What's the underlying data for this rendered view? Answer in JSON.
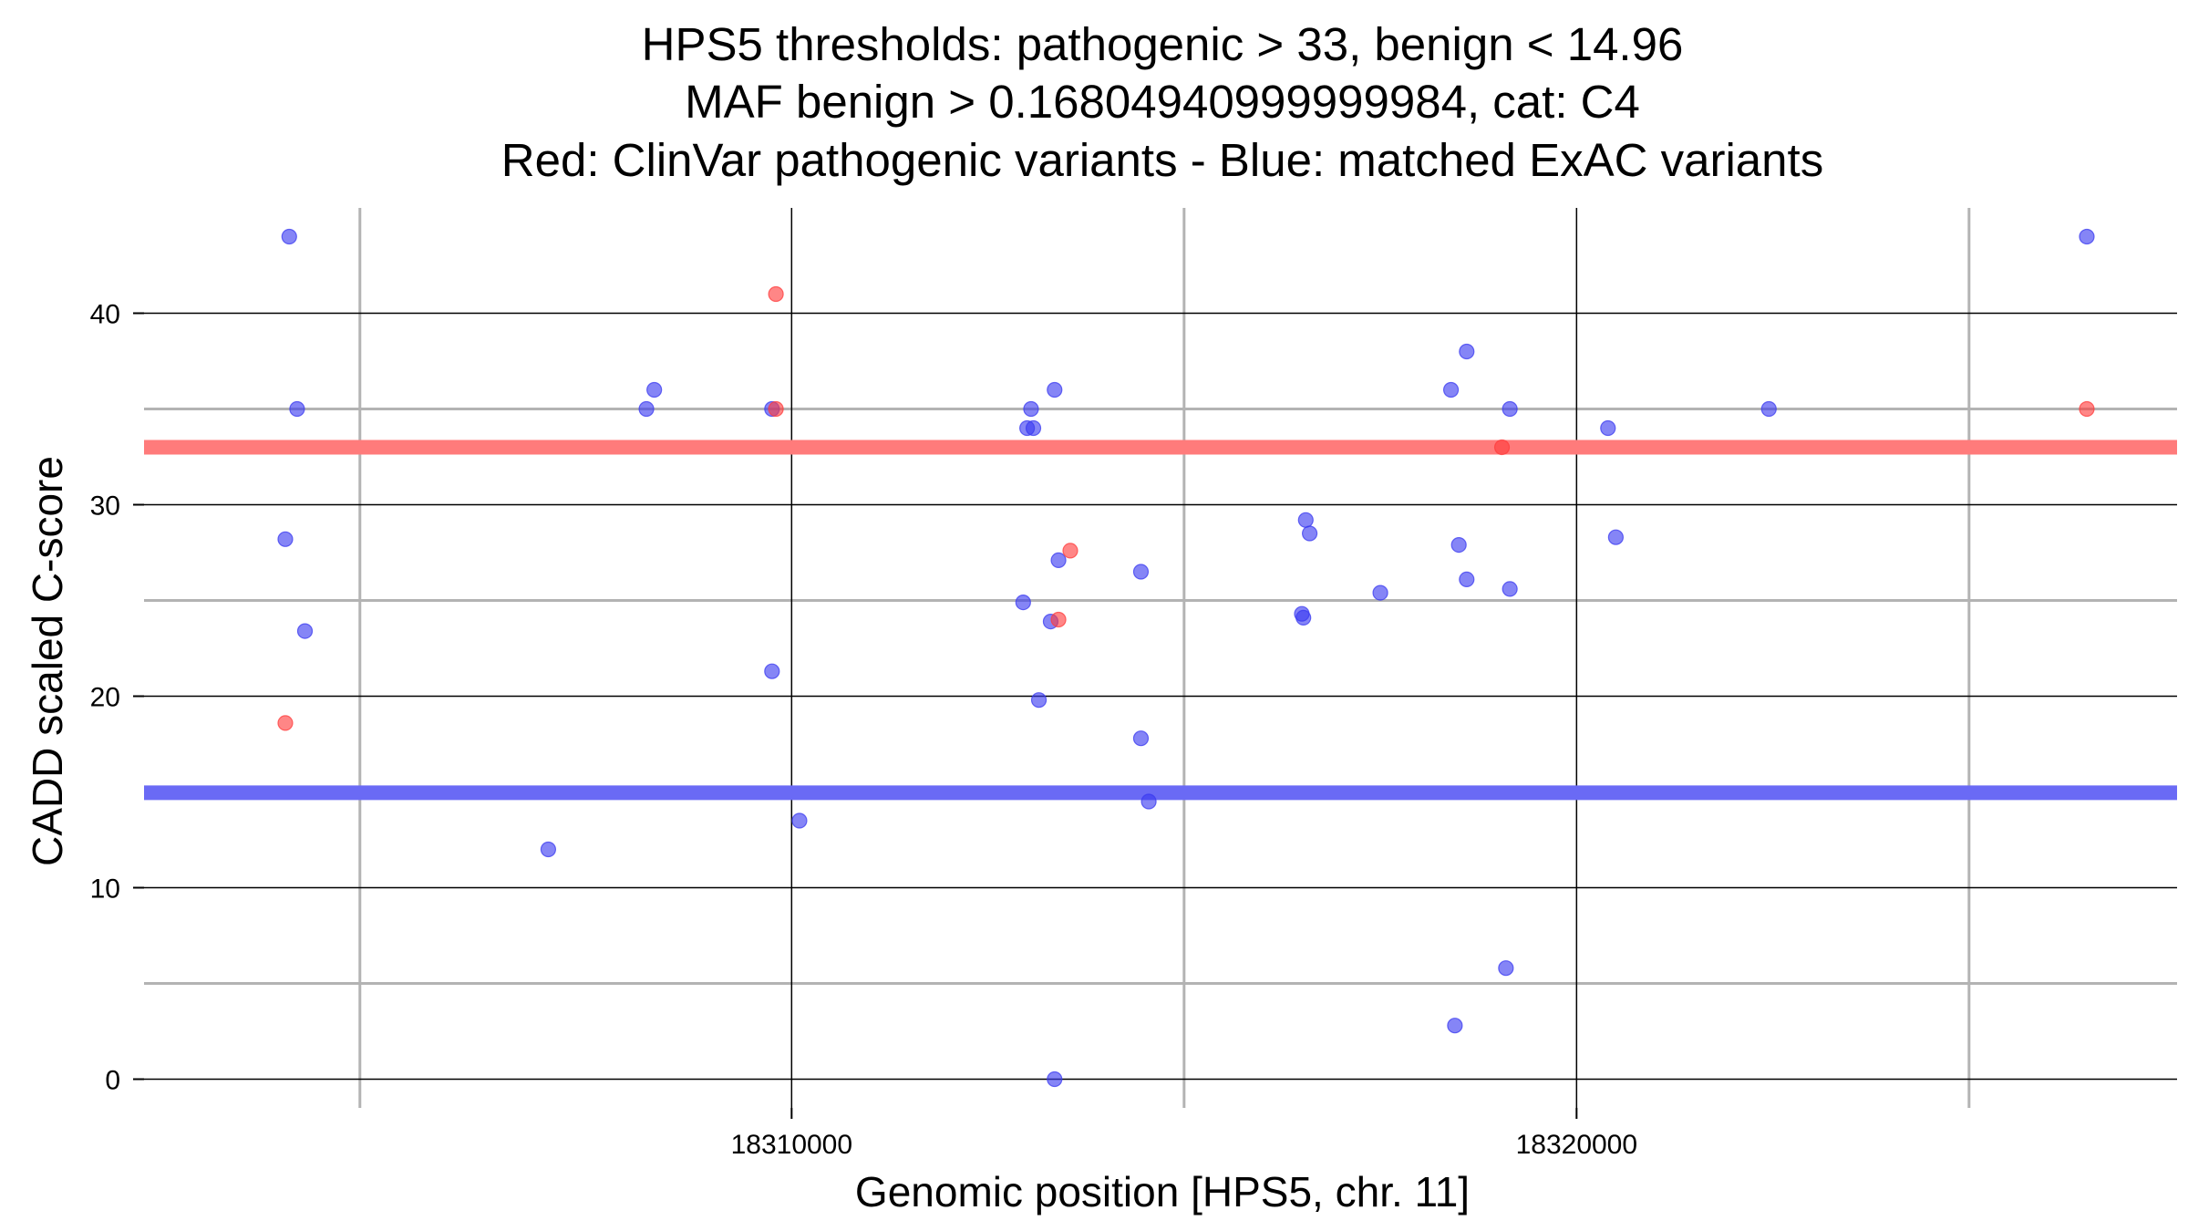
{
  "chart_data": {
    "type": "scatter",
    "title_lines": [
      "HPS5 thresholds: pathogenic > 33, benign < 14.96",
      "MAF benign > 0.16804940999999984, cat: C4",
      "Red: ClinVar pathogenic variants - Blue: matched ExAC variants"
    ],
    "xlabel": "Genomic position [HPS5, chr. 11]",
    "ylabel": "CADD scaled C-score",
    "xlim": [
      18301750,
      18327650
    ],
    "ylim": [
      -1.5,
      45.5
    ],
    "x_major_ticks": [
      18310000,
      18320000
    ],
    "x_minor_ticks": [
      18304500,
      18315000,
      18325000
    ],
    "y_major_ticks": [
      0,
      10,
      20,
      30,
      40
    ],
    "y_minor_ticks": [
      5,
      15,
      25,
      35
    ],
    "x_tick_labels": [
      "18310000",
      "18320000"
    ],
    "y_tick_labels": [
      "0",
      "10",
      "20",
      "30",
      "40"
    ],
    "grid": true,
    "thresholds": {
      "pathogenic": 33,
      "benign": 14.96
    },
    "colors": {
      "pathogenic": "#ff3b3b",
      "benign": "#3a3af0",
      "threshold_pathogenic": "#ff7b7b",
      "threshold_benign": "#6a6af5",
      "grid_major": "#000000",
      "grid_minor": "#b3b3b3"
    },
    "series": [
      {
        "name": "ClinVar pathogenic variants",
        "color": "#ff3b3b",
        "points": [
          {
            "x": 18303550,
            "y": 18.6
          },
          {
            "x": 18309800,
            "y": 41.0
          },
          {
            "x": 18309800,
            "y": 35.0
          },
          {
            "x": 18313550,
            "y": 27.6
          },
          {
            "x": 18313400,
            "y": 24.0
          },
          {
            "x": 18319050,
            "y": 33.0
          },
          {
            "x": 18326500,
            "y": 35.0
          }
        ]
      },
      {
        "name": "matched ExAC variants",
        "color": "#3a3af0",
        "points": [
          {
            "x": 18303600,
            "y": 44.0
          },
          {
            "x": 18303700,
            "y": 35.0
          },
          {
            "x": 18303550,
            "y": 28.2
          },
          {
            "x": 18303800,
            "y": 23.4
          },
          {
            "x": 18306900,
            "y": 12.0
          },
          {
            "x": 18308150,
            "y": 35.0
          },
          {
            "x": 18308250,
            "y": 36.0
          },
          {
            "x": 18309750,
            "y": 35.0
          },
          {
            "x": 18309750,
            "y": 21.3
          },
          {
            "x": 18310100,
            "y": 13.5
          },
          {
            "x": 18313000,
            "y": 34.0
          },
          {
            "x": 18313080,
            "y": 34.0
          },
          {
            "x": 18313050,
            "y": 35.0
          },
          {
            "x": 18313350,
            "y": 36.0
          },
          {
            "x": 18313400,
            "y": 27.1
          },
          {
            "x": 18312950,
            "y": 24.9
          },
          {
            "x": 18313300,
            "y": 23.9
          },
          {
            "x": 18313150,
            "y": 19.8
          },
          {
            "x": 18313350,
            "y": 0.0
          },
          {
            "x": 18314450,
            "y": 26.5
          },
          {
            "x": 18314450,
            "y": 17.8
          },
          {
            "x": 18314550,
            "y": 14.5
          },
          {
            "x": 18316550,
            "y": 29.2
          },
          {
            "x": 18316600,
            "y": 28.5
          },
          {
            "x": 18316500,
            "y": 24.3
          },
          {
            "x": 18316520,
            "y": 24.1
          },
          {
            "x": 18317500,
            "y": 25.4
          },
          {
            "x": 18318400,
            "y": 36.0
          },
          {
            "x": 18318600,
            "y": 38.0
          },
          {
            "x": 18318500,
            "y": 27.9
          },
          {
            "x": 18318600,
            "y": 26.1
          },
          {
            "x": 18318450,
            "y": 2.8
          },
          {
            "x": 18319150,
            "y": 35.0
          },
          {
            "x": 18319150,
            "y": 25.6
          },
          {
            "x": 18319100,
            "y": 5.8
          },
          {
            "x": 18320400,
            "y": 34.0
          },
          {
            "x": 18320500,
            "y": 28.3
          },
          {
            "x": 18322450,
            "y": 35.0
          },
          {
            "x": 18326500,
            "y": 44.0
          }
        ]
      }
    ]
  }
}
